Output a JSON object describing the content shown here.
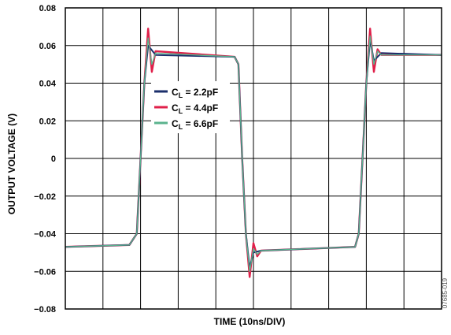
{
  "chart_data": {
    "type": "line",
    "title": "",
    "xlabel": "TIME (10ns/DIV)",
    "ylabel": "OUTPUT VOLTAGE (V)",
    "ylim": [
      -0.08,
      0.08
    ],
    "yticks": [
      "0.08",
      "0.06",
      "0.04",
      "0.02",
      "0",
      "−0.02",
      "−0.04",
      "−0.06",
      "−0.08"
    ],
    "x_divisions": 10,
    "x_unit": "ns",
    "grid": true,
    "legend_position": "center-left",
    "watermark": "07685-019",
    "series": [
      {
        "name": "C_L = 2.2pF",
        "legend_label": {
          "base": "C",
          "sub": "L",
          "rest": " = 2.2pF"
        },
        "color": "#1b2f6b",
        "x": [
          0,
          17,
          19,
          20,
          21,
          22,
          24,
          45,
          46,
          47,
          48,
          49,
          50,
          52,
          77,
          78,
          79,
          80,
          81,
          82,
          84,
          100
        ],
        "y": [
          -0.047,
          -0.046,
          -0.04,
          0.0,
          0.04,
          0.06,
          0.055,
          0.054,
          0.05,
          0.0,
          -0.04,
          -0.058,
          -0.05,
          -0.049,
          -0.047,
          -0.04,
          0.0,
          0.04,
          0.063,
          0.052,
          0.056,
          0.055
        ]
      },
      {
        "name": "C_L = 4.4pF",
        "legend_label": {
          "base": "C",
          "sub": "L",
          "rest": " = 4.4pF"
        },
        "color": "#e0204a",
        "x": [
          0,
          17,
          19,
          20,
          21,
          22,
          23,
          24,
          45,
          46,
          47,
          48,
          49,
          50,
          51,
          52,
          77,
          78,
          79,
          80,
          81,
          82,
          83,
          84,
          100
        ],
        "y": [
          -0.047,
          -0.046,
          -0.04,
          0.0,
          0.04,
          0.069,
          0.046,
          0.057,
          0.054,
          0.05,
          0.0,
          -0.04,
          -0.063,
          -0.045,
          -0.052,
          -0.049,
          -0.047,
          -0.04,
          0.0,
          0.04,
          0.069,
          0.046,
          0.058,
          0.055,
          0.055
        ]
      },
      {
        "name": "C_L = 6.6pF",
        "legend_label": {
          "base": "C",
          "sub": "L",
          "rest": " = 6.6pF"
        },
        "color": "#5bb38e",
        "x": [
          0,
          17,
          19,
          20,
          21,
          22,
          23,
          24,
          45,
          46,
          47,
          48,
          49,
          50,
          51,
          52,
          77,
          78,
          79,
          80,
          81,
          82,
          83,
          84,
          100
        ],
        "y": [
          -0.047,
          -0.046,
          -0.04,
          0.0,
          0.04,
          0.064,
          0.05,
          0.056,
          0.054,
          0.05,
          0.0,
          -0.04,
          -0.06,
          -0.048,
          -0.051,
          -0.049,
          -0.047,
          -0.04,
          0.0,
          0.04,
          0.065,
          0.05,
          0.057,
          0.055,
          0.055
        ]
      }
    ]
  }
}
